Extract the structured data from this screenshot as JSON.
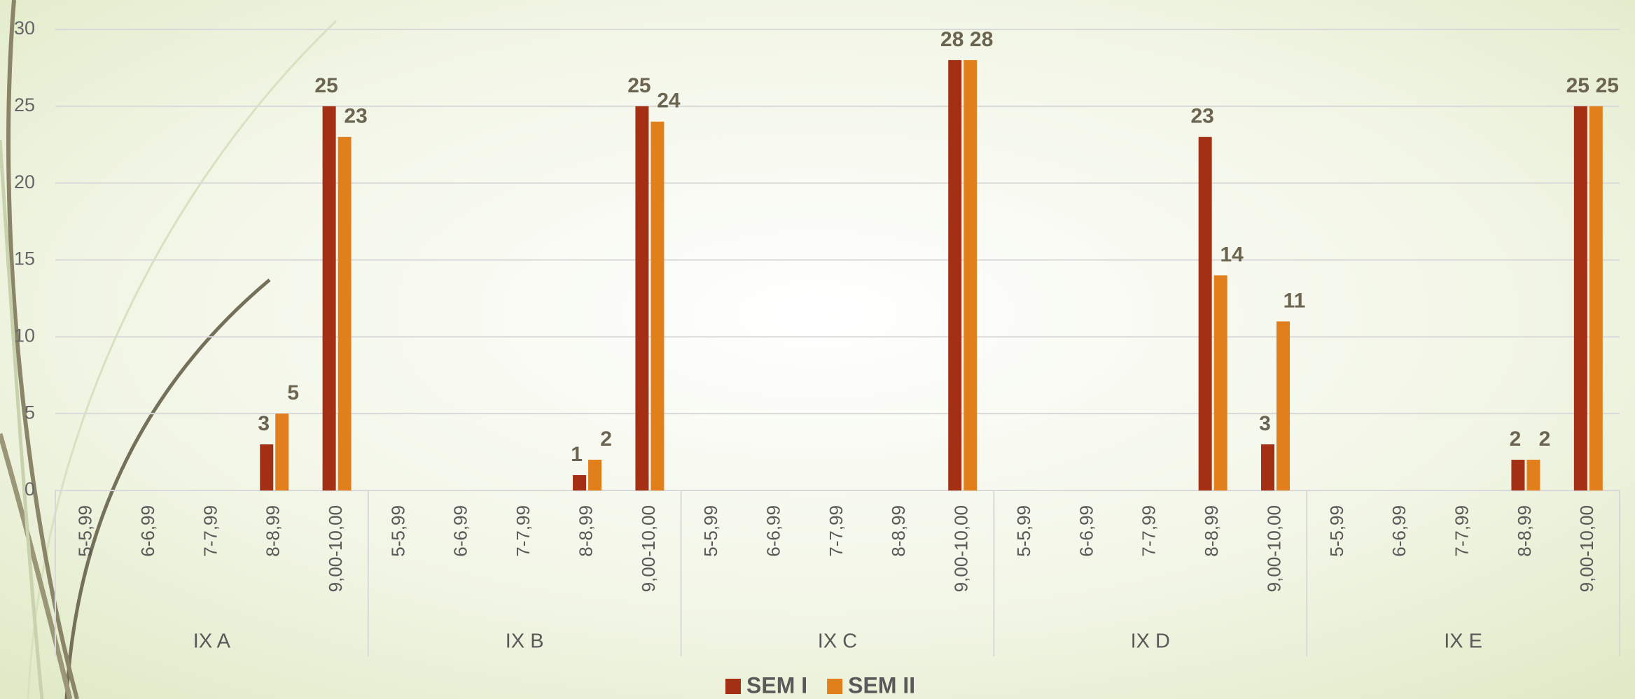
{
  "chart_data": {
    "type": "bar",
    "groups": [
      "IX A",
      "IX B",
      "IX C",
      "IX D",
      "IX E"
    ],
    "categories": [
      "5-5,99",
      "6-6,99",
      "7-7,99",
      "8-8,99",
      "9,00-10,00",
      "5-5,99",
      "6-6,99",
      "7-7,99",
      "8-8,99",
      "9,00-10,00",
      "5-5,99",
      "6-6,99",
      "7-7,99",
      "8-8,99",
      "9,00-10,00",
      "5-5,99",
      "6-6,99",
      "7-7,99",
      "8-8,99",
      "9,00-10,00",
      "5-5,99",
      "6-6,99",
      "7-7,99",
      "8-8,99",
      "9,00-10,00"
    ],
    "series": [
      {
        "name": "SEM I",
        "color": "#a32f14",
        "values": [
          null,
          null,
          null,
          3,
          25,
          null,
          null,
          null,
          1,
          25,
          null,
          null,
          null,
          null,
          28,
          null,
          null,
          null,
          23,
          3,
          null,
          null,
          null,
          2,
          25
        ]
      },
      {
        "name": "SEM II",
        "color": "#e07f1c",
        "values": [
          null,
          null,
          null,
          5,
          23,
          null,
          null,
          null,
          2,
          24,
          null,
          null,
          null,
          null,
          28,
          null,
          null,
          null,
          14,
          11,
          null,
          null,
          null,
          2,
          25
        ]
      }
    ],
    "ylim": [
      0,
      30
    ],
    "yticks": [
      0,
      5,
      10,
      15,
      20,
      25,
      30
    ],
    "grid": true,
    "legend": "bottom"
  }
}
